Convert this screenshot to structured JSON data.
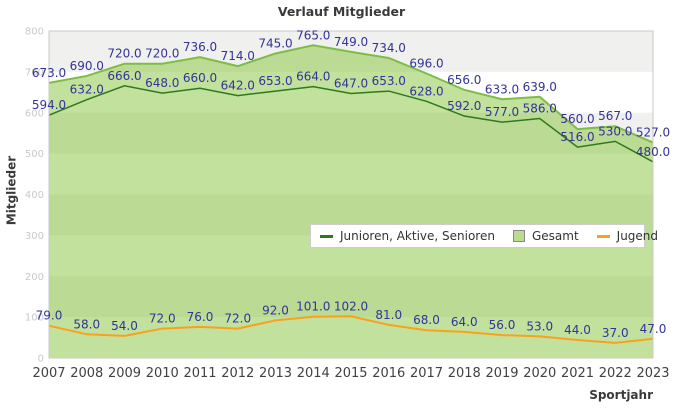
{
  "title": "Verlauf Mitglieder",
  "chart_data": {
    "type": "area",
    "title": "Verlauf Mitglieder",
    "xlabel": "Sportjahr",
    "ylabel": "Mitglieder",
    "x": [
      2007,
      2008,
      2009,
      2010,
      2011,
      2012,
      2013,
      2014,
      2015,
      2016,
      2017,
      2018,
      2019,
      2020,
      2021,
      2022,
      2023
    ],
    "ylim": [
      0,
      800
    ],
    "ytick_interval": 100,
    "grid_bands": true,
    "legend_position": "inside-middle",
    "series": [
      {
        "name": "Gesamt",
        "style": "area",
        "line_color": "#7dbd46",
        "fill_color": "rgba(134,195,58,0.5)",
        "values": [
          673,
          690,
          720,
          720,
          736,
          714,
          745,
          765,
          749,
          734,
          696,
          656,
          633,
          639,
          560,
          567,
          527
        ]
      },
      {
        "name": "Junioren, Aktive, Senioren",
        "style": "line",
        "line_color": "#2d7a1c",
        "values": [
          594,
          632,
          666,
          648,
          660,
          642,
          653,
          664,
          647,
          653,
          628,
          592,
          577,
          586,
          516,
          530,
          480
        ]
      },
      {
        "name": "Jugend",
        "style": "line",
        "line_color": "#f9a11f",
        "values": [
          79,
          58,
          54,
          72,
          76,
          72,
          92,
          101,
          102,
          81,
          68,
          64,
          56,
          53,
          44,
          37,
          47
        ]
      }
    ],
    "point_label_color": "#333399",
    "point_label_decimals": 1
  },
  "legend": {
    "items": [
      {
        "label": "Junioren, Aktive, Senioren",
        "marker": "line",
        "color": "#2d7a1c"
      },
      {
        "label": "Gesamt",
        "marker": "square",
        "color": "#b9dc8e"
      },
      {
        "label": "Jugend",
        "marker": "line",
        "color": "#f9a11f"
      }
    ]
  },
  "colors": {
    "band_gray": "#f0f0ee",
    "band_white": "#ffffff",
    "plot_border": "#c9c9c9",
    "ytick_text": "#c9c9c9",
    "xtick_text": "#414141"
  }
}
